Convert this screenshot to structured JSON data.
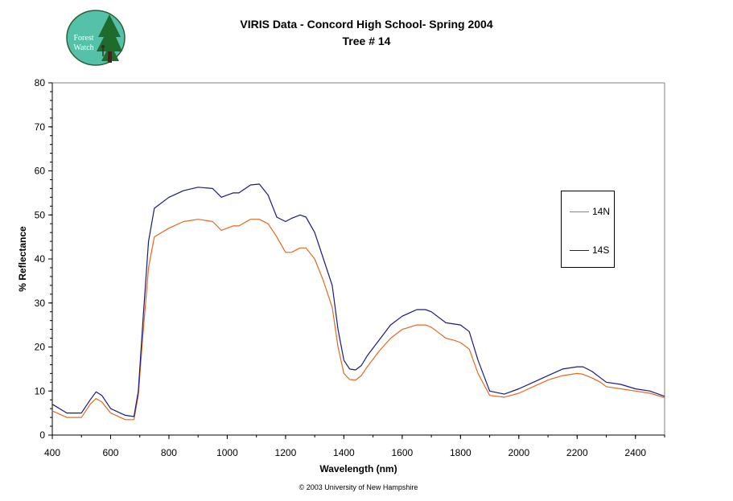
{
  "logo": {
    "text_line1": "Forest",
    "text_line2": "Watch"
  },
  "footer": {
    "copyright": "© 2003 University of New Hampshire"
  },
  "chart_data": {
    "type": "line",
    "title": "VIRIS Data - Concord High School- Spring 2004",
    "subtitle": "Tree # 14",
    "xlabel": "Wavelength (nm)",
    "ylabel": "% Reflectance",
    "xlim": [
      400,
      2500
    ],
    "ylim": [
      0,
      80
    ],
    "x_ticks": [
      400,
      600,
      800,
      1000,
      1200,
      1400,
      1600,
      1800,
      2000,
      2200,
      2400
    ],
    "y_ticks": [
      0,
      10,
      20,
      30,
      40,
      50,
      60,
      70,
      80
    ],
    "grid": false,
    "legend_position": "right",
    "series": [
      {
        "name": "14N",
        "color": "#e5691e",
        "x": [
          400,
          450,
          500,
          530,
          550,
          570,
          600,
          650,
          680,
          695,
          710,
          730,
          750,
          800,
          850,
          900,
          950,
          980,
          1000,
          1020,
          1040,
          1080,
          1110,
          1140,
          1170,
          1200,
          1220,
          1250,
          1270,
          1300,
          1330,
          1360,
          1380,
          1400,
          1420,
          1440,
          1460,
          1480,
          1520,
          1560,
          1600,
          1650,
          1680,
          1700,
          1720,
          1750,
          1780,
          1800,
          1830,
          1860,
          1900,
          1950,
          2000,
          2050,
          2100,
          2150,
          2200,
          2220,
          2250,
          2280,
          2300,
          2350,
          2400,
          2450,
          2500
        ],
        "y": [
          5.5,
          4,
          4,
          7,
          8.3,
          7.5,
          5,
          3.5,
          3.5,
          9,
          22,
          38,
          45,
          47,
          48.5,
          49,
          48.5,
          46.5,
          47,
          47.5,
          47.5,
          49,
          49,
          48,
          45,
          41.5,
          41.5,
          42.5,
          42.5,
          40,
          35,
          29,
          20,
          14,
          12.6,
          12.5,
          13.5,
          15.5,
          19,
          22,
          24,
          25,
          25,
          24.5,
          23.5,
          22,
          21.5,
          21,
          19.5,
          14,
          9,
          8.6,
          9.5,
          11,
          12.5,
          13.5,
          14,
          13.8,
          13,
          12,
          11,
          10.5,
          10,
          9.5,
          8.5
        ]
      },
      {
        "name": "14S",
        "color": "#1a1a80",
        "x": [
          400,
          450,
          500,
          530,
          550,
          570,
          600,
          650,
          680,
          695,
          710,
          730,
          750,
          800,
          850,
          900,
          950,
          980,
          1000,
          1020,
          1040,
          1080,
          1110,
          1140,
          1170,
          1200,
          1220,
          1250,
          1270,
          1300,
          1330,
          1360,
          1380,
          1400,
          1420,
          1440,
          1460,
          1480,
          1520,
          1560,
          1600,
          1650,
          1680,
          1700,
          1720,
          1750,
          1780,
          1800,
          1830,
          1860,
          1900,
          1950,
          2000,
          2050,
          2100,
          2150,
          2200,
          2220,
          2250,
          2280,
          2300,
          2350,
          2400,
          2450,
          2500
        ],
        "y": [
          7,
          5,
          5,
          8,
          9.8,
          9,
          6,
          4.5,
          4.2,
          10,
          25,
          44,
          51.5,
          54,
          55.5,
          56.3,
          56,
          54,
          54.5,
          55,
          55,
          56.8,
          57,
          54.5,
          49.5,
          48.5,
          49.2,
          50,
          49.5,
          46,
          40,
          34,
          24,
          17,
          15,
          14.8,
          15.8,
          18,
          21.5,
          25,
          27,
          28.5,
          28.5,
          28,
          27,
          25.5,
          25.2,
          25,
          23.5,
          17,
          10,
          9.3,
          10.5,
          12,
          13.5,
          15,
          15.5,
          15.5,
          14.5,
          13,
          12,
          11.5,
          10.5,
          10,
          8.8
        ]
      }
    ]
  }
}
